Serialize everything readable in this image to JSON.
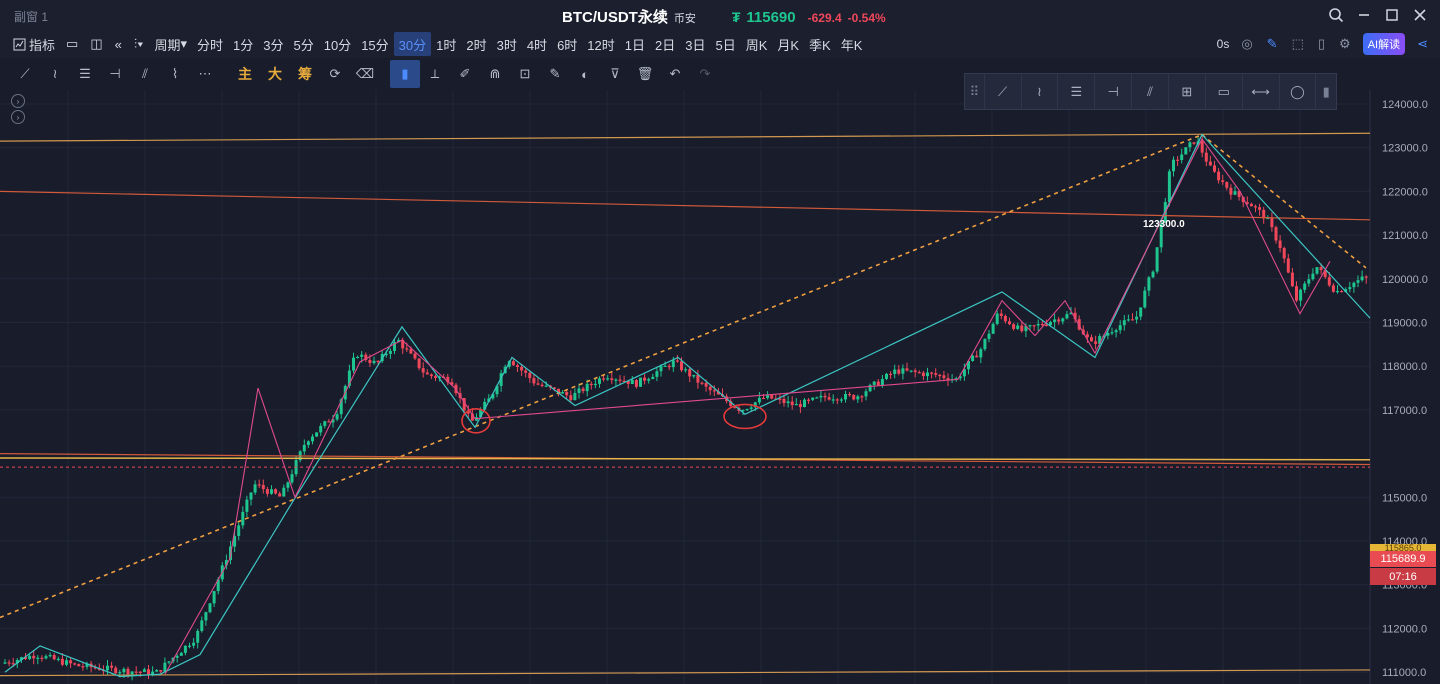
{
  "window": {
    "name": "副窗 1"
  },
  "header": {
    "pair": "BTC/USDT永续",
    "exchange": "币安",
    "price_symbol": "₮",
    "price": "115690",
    "change": "-629.4",
    "change_pct": "-0.54%",
    "up_color": "#1fc58f",
    "down_color": "#f0475a"
  },
  "toolbar": {
    "indicator_label": "指标",
    "period_label": "周期",
    "timeframes": [
      "分时",
      "1分",
      "3分",
      "5分",
      "10分",
      "15分",
      "30分",
      "1时",
      "2时",
      "3时",
      "4时",
      "6时",
      "12时",
      "1日",
      "2日",
      "3日",
      "5日",
      "周K",
      "月K",
      "季K",
      "年K"
    ],
    "active_timeframe": "30分",
    "latency": "0s",
    "ai_label": "AI解读"
  },
  "drawing_tools": {
    "labels": [
      "主",
      "大",
      "筹"
    ]
  },
  "price_axis": {
    "ticks": [
      "124000.0",
      "123000.0",
      "122000.0",
      "121000.0",
      "120000.0",
      "119000.0",
      "118000.0",
      "117000.0",
      "115000.0",
      "114000.0",
      "113000.0",
      "112000.0",
      "111000.0"
    ],
    "partial_tick": "115865.0",
    "last_price": "115689.9",
    "countdown": "07:16"
  },
  "annotations": {
    "high_label": "123300.0"
  },
  "chart_data": {
    "type": "candlestick",
    "ylim": [
      110950,
      124200
    ],
    "grid": true,
    "last_price": 115689.9,
    "high": 123300.0
  }
}
